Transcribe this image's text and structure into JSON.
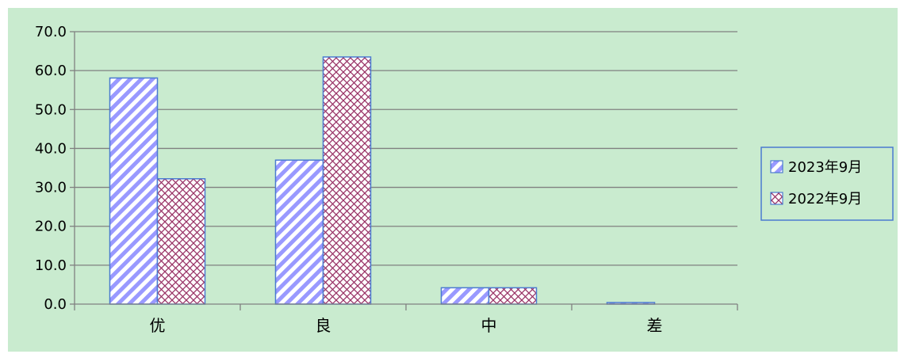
{
  "chart_data": {
    "type": "bar",
    "categories": [
      "优",
      "良",
      "中",
      "差"
    ],
    "series": [
      {
        "name": "2023年9月",
        "values": [
          58.1,
          37.0,
          4.2,
          0.4
        ]
      },
      {
        "name": "2022年9月",
        "values": [
          32.2,
          63.5,
          4.2,
          0.0
        ]
      }
    ],
    "y_ticks": [
      "0.0",
      "10.0",
      "20.0",
      "30.0",
      "40.0",
      "50.0",
      "60.0",
      "70.0"
    ],
    "ylim": [
      0,
      70
    ],
    "grid": true,
    "legend_position": "right",
    "colors": {
      "background": "#c9ebcf",
      "series_2023": "#9999ff",
      "series_2022": "#993366",
      "bar_border": "#4a7ad0",
      "grid": "#808080"
    }
  }
}
